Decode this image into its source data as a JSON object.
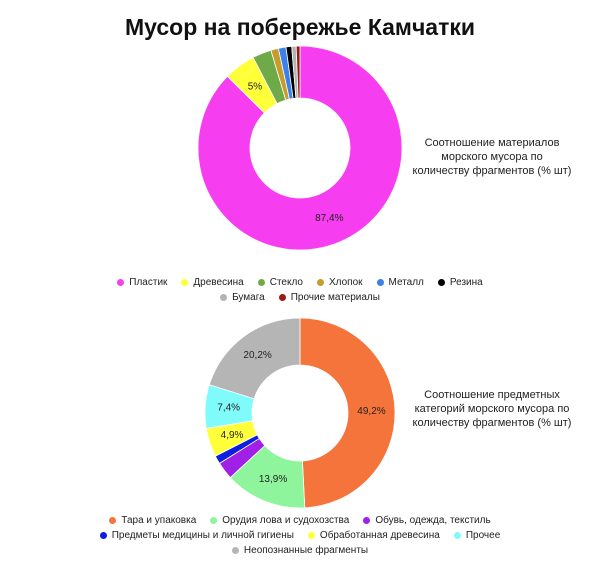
{
  "title": "Мусор на побережье Камчатки",
  "chart_data": [
    {
      "type": "donut",
      "subtitle": "Соотношение материалов морского мусора по количеству фрагментов (% шт)",
      "categories": [
        "Пластик",
        "Древесина",
        "Стекло",
        "Хлопок",
        "Металл",
        "Резина",
        "Бумага",
        "Прочие материалы"
      ],
      "values": [
        87.4,
        5,
        3,
        1.2,
        1.2,
        0.9,
        0.7,
        0.6
      ],
      "value_labels": [
        "87,4%",
        "5%",
        null,
        null,
        null,
        null,
        null,
        null
      ],
      "colors": [
        "#f63ef0",
        "#ffff3a",
        "#6eaa48",
        "#c79c2a",
        "#3c80ea",
        "#000000",
        "#b3b3b3",
        "#9a1a14"
      ]
    },
    {
      "type": "donut",
      "subtitle": "Соотношение предметных категорий морского мусора по количеству фрагментов (% шт)",
      "categories": [
        "Тара и упаковка",
        "Орудия лова и судохозства",
        "Обувь, одежда, текстиль",
        "Предметы медицины и личной гигиены",
        "Обработанная древесина",
        "Прочее",
        "Неопознанные фрагменты"
      ],
      "values": [
        49.2,
        13.9,
        3,
        1.4,
        4.9,
        7.4,
        20.2
      ],
      "value_labels": [
        "49,2%",
        "13,9%",
        null,
        null,
        "4,9%",
        "7,4%",
        "20,2%"
      ],
      "colors": [
        "#f4743b",
        "#8ef59c",
        "#a020e8",
        "#0c1ee0",
        "#ffff3a",
        "#80fbfb",
        "#b5b5b5"
      ]
    }
  ]
}
